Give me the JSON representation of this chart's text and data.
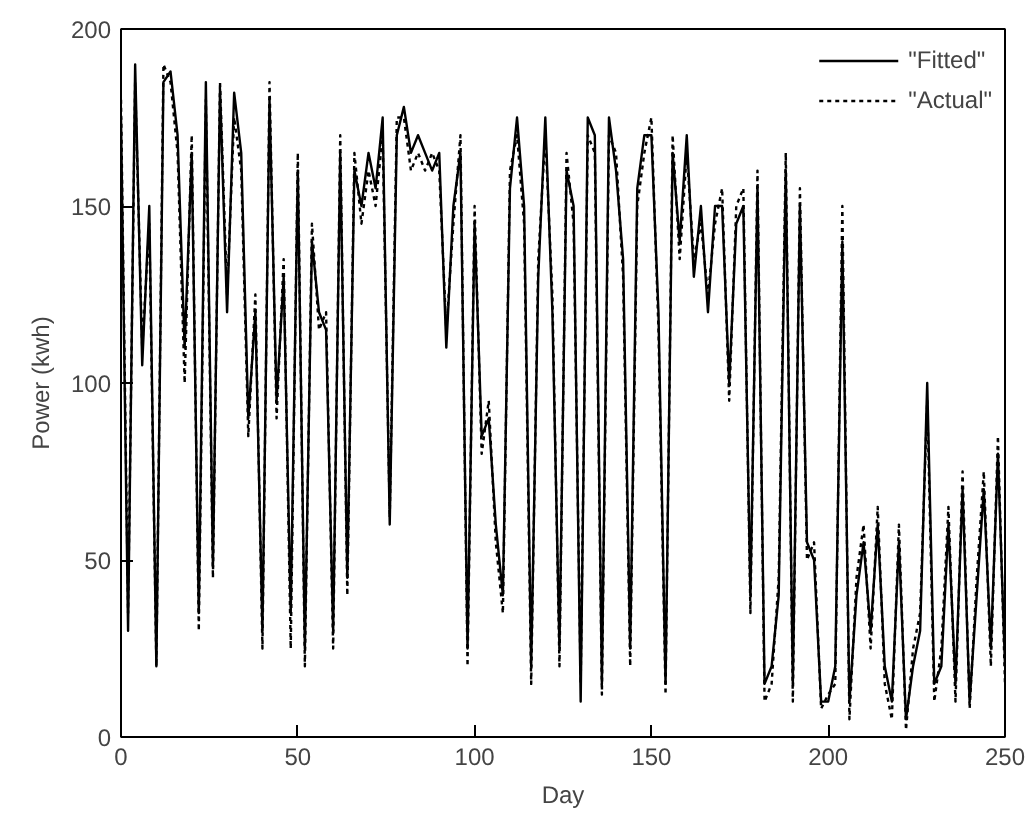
{
  "chart_data": {
    "type": "line",
    "xlabel": "Day",
    "ylabel": "Power (kwh)",
    "x": [
      0,
      2,
      4,
      6,
      8,
      10,
      12,
      14,
      16,
      18,
      20,
      22,
      24,
      26,
      28,
      30,
      32,
      34,
      36,
      38,
      40,
      42,
      44,
      46,
      48,
      50,
      52,
      54,
      56,
      58,
      60,
      62,
      64,
      66,
      68,
      70,
      72,
      74,
      76,
      78,
      80,
      82,
      84,
      86,
      88,
      90,
      92,
      94,
      96,
      98,
      100,
      102,
      104,
      106,
      108,
      110,
      112,
      114,
      116,
      118,
      120,
      122,
      124,
      126,
      128,
      130,
      132,
      134,
      136,
      138,
      140,
      142,
      144,
      146,
      148,
      150,
      152,
      154,
      156,
      158,
      160,
      162,
      164,
      166,
      168,
      170,
      172,
      174,
      176,
      178,
      180,
      182,
      184,
      186,
      188,
      190,
      192,
      194,
      196,
      198,
      200,
      202,
      204,
      206,
      208,
      210,
      212,
      214,
      216,
      218,
      220,
      222,
      224,
      226,
      228,
      230,
      232,
      234,
      236,
      238,
      240,
      242,
      244,
      246,
      248,
      250
    ],
    "xlim": [
      0,
      250
    ],
    "ylim": [
      0,
      200
    ],
    "xticks": [
      0,
      50,
      100,
      150,
      200,
      250
    ],
    "yticks": [
      0,
      50,
      100,
      150,
      200
    ],
    "grid": false,
    "legend": "top right",
    "series": [
      {
        "name": "\"Fitted\"",
        "color": "#000000",
        "line_style": "solid",
        "values": [
          175,
          30,
          190,
          105,
          150,
          20,
          185,
          188,
          170,
          110,
          165,
          35,
          185,
          48,
          183,
          120,
          182,
          165,
          90,
          120,
          30,
          180,
          95,
          130,
          35,
          160,
          25,
          140,
          120,
          115,
          30,
          165,
          45,
          160,
          150,
          165,
          155,
          175,
          60,
          170,
          178,
          165,
          170,
          165,
          160,
          165,
          110,
          150,
          165,
          25,
          145,
          85,
          90,
          60,
          40,
          155,
          175,
          150,
          20,
          130,
          175,
          120,
          25,
          160,
          150,
          10,
          175,
          170,
          15,
          175,
          160,
          135,
          25,
          155,
          170,
          170,
          120,
          15,
          165,
          140,
          170,
          130,
          150,
          120,
          150,
          150,
          100,
          145,
          150,
          40,
          155,
          15,
          20,
          40,
          160,
          15,
          150,
          55,
          50,
          10,
          10,
          20,
          140,
          10,
          40,
          55,
          30,
          60,
          20,
          10,
          55,
          5,
          20,
          30,
          100,
          15,
          20,
          60,
          15,
          70,
          10,
          40,
          70,
          25,
          80,
          20
        ]
      },
      {
        "name": "\"Actual\"",
        "color": "#000000",
        "line_style": "dashed",
        "values": [
          180,
          35,
          185,
          110,
          145,
          20,
          190,
          185,
          165,
          100,
          170,
          30,
          180,
          45,
          185,
          125,
          175,
          160,
          85,
          125,
          25,
          185,
          90,
          135,
          25,
          165,
          20,
          145,
          115,
          120,
          25,
          170,
          40,
          165,
          145,
          160,
          150,
          170,
          62,
          175,
          175,
          160,
          165,
          160,
          165,
          160,
          115,
          145,
          170,
          20,
          150,
          80,
          95,
          55,
          35,
          160,
          170,
          145,
          15,
          135,
          170,
          125,
          20,
          165,
          145,
          15,
          170,
          165,
          12,
          170,
          165,
          130,
          20,
          150,
          165,
          175,
          115,
          12,
          170,
          135,
          165,
          135,
          145,
          125,
          145,
          155,
          95,
          150,
          155,
          35,
          160,
          10,
          15,
          45,
          165,
          10,
          155,
          50,
          55,
          8,
          12,
          15,
          150,
          5,
          45,
          60,
          25,
          65,
          15,
          5,
          60,
          2,
          25,
          35,
          95,
          10,
          25,
          65,
          10,
          75,
          8,
          45,
          75,
          20,
          85,
          15
        ]
      }
    ]
  }
}
